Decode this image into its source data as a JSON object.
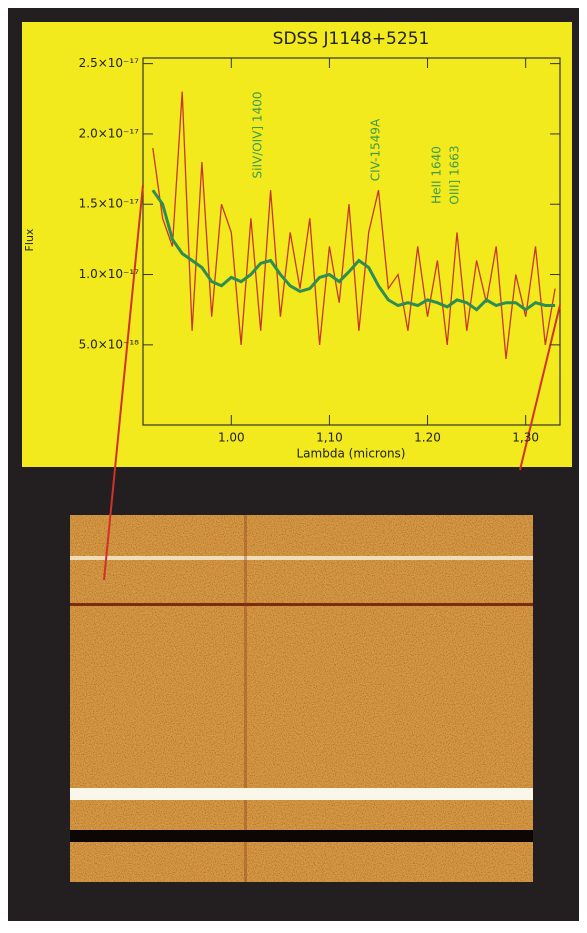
{
  "chart_data": {
    "type": "line",
    "title": "SDSS J1148+5251",
    "x_label": "Lambda (microns)",
    "y_label": "Flux",
    "annotations": [
      "SiIV/OIV] 1400",
      "CIV-1549A",
      "HeII 1640",
      "OIII] 1663"
    ],
    "x": [
      0.92,
      0.93,
      0.94,
      0.95,
      0.96,
      0.97,
      0.98,
      0.99,
      1.0,
      1.01,
      1.02,
      1.03,
      1.04,
      1.05,
      1.06,
      1.07,
      1.08,
      1.09,
      1.1,
      1.11,
      1.12,
      1.13,
      1.14,
      1.15,
      1.16,
      1.17,
      1.18,
      1.19,
      1.2,
      1.21,
      1.22,
      1.23,
      1.24,
      1.25,
      1.26,
      1.27,
      1.28,
      1.29,
      1.3,
      1.31,
      1.32,
      1.33
    ],
    "series": [
      {
        "color": "#c9352b",
        "values": [
          1.9e-17,
          1.4e-17,
          1.2e-17,
          2.3e-17,
          6e-18,
          1.8e-17,
          7e-18,
          1.5e-17,
          1.3e-17,
          5e-18,
          1.4e-17,
          6e-18,
          1.6e-17,
          7e-18,
          1.3e-17,
          9e-18,
          1.4e-17,
          5e-18,
          1.2e-17,
          8e-18,
          1.5e-17,
          6e-18,
          1.3e-17,
          1.6e-17,
          9e-18,
          1e-17,
          6e-18,
          1.2e-17,
          7e-18,
          1.1e-17,
          5e-18,
          1.3e-17,
          6e-18,
          1.1e-17,
          8e-18,
          1.2e-17,
          4e-18,
          1e-17,
          7e-18,
          1.2e-17,
          5e-18,
          9e-18
        ]
      },
      {
        "color": "#2e8c55",
        "values": [
          1.6e-17,
          1.5e-17,
          1.25e-17,
          1.15e-17,
          1.1e-17,
          1.05e-17,
          9.5e-18,
          9.2e-18,
          9.8e-18,
          9.5e-18,
          1e-17,
          1.08e-17,
          1.1e-17,
          1e-17,
          9.2e-18,
          8.8e-18,
          9e-18,
          9.8e-18,
          1e-17,
          9.5e-18,
          1.02e-17,
          1.1e-17,
          1.05e-17,
          9.2e-18,
          8.2e-18,
          7.8e-18,
          8e-18,
          7.8e-18,
          8.2e-18,
          8e-18,
          7.7e-18,
          8.2e-18,
          8e-18,
          7.5e-18,
          8.2e-18,
          7.8e-18,
          8e-18,
          8e-18,
          7.5e-18,
          8e-18,
          7.8e-18,
          7.8e-18
        ]
      }
    ],
    "xlim": [
      0.91,
      1.335
    ],
    "ylim": [
      -7e-19,
      2.54e-17
    ],
    "xticks": [
      {
        "value": 1.0,
        "label": "1.00"
      },
      {
        "value": 1.1,
        "label": "1,10"
      },
      {
        "value": 1.2,
        "label": "1.20"
      },
      {
        "value": 1.3,
        "label": "1,30"
      }
    ],
    "yticks": [
      {
        "value": 5e-18,
        "label": "5.0×10⁻¹⁸"
      },
      {
        "value": 1e-17,
        "label": "1.0×10⁻¹⁷"
      },
      {
        "value": 1.5e-17,
        "label": "1.5×10⁻¹⁷"
      },
      {
        "value": 2e-17,
        "label": "2.0×10⁻¹⁷"
      },
      {
        "value": 2.5e-17,
        "label": "2.5×10⁻¹⁷"
      }
    ]
  }
}
